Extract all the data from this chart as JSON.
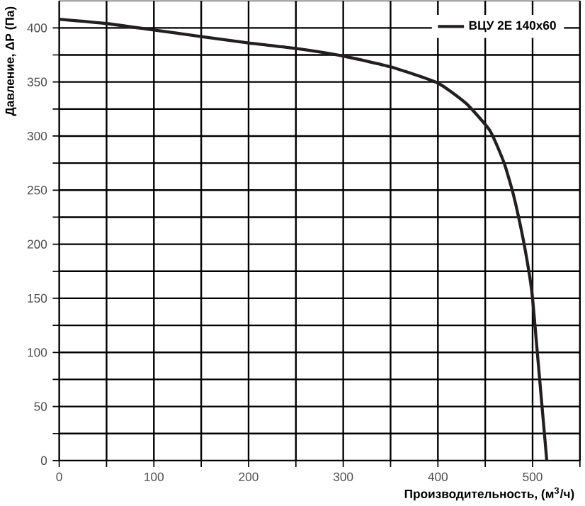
{
  "chart_data": {
    "type": "line",
    "xlabel": "Производительность, (м$^{3}$/ч)",
    "ylabel": "Давление, ΔP (Па)",
    "x": [
      0,
      50,
      100,
      150,
      200,
      250,
      300,
      350,
      400,
      430,
      455,
      470,
      480,
      490,
      497,
      500,
      505,
      510,
      515
    ],
    "series": [
      {
        "name": "ВЦУ 2Е 140x60",
        "color": "#231f20",
        "values": [
          408,
          404,
          398,
          392,
          386,
          381,
          374,
          364,
          349,
          330,
          305,
          275,
          245,
          205,
          170,
          150,
          100,
          50,
          0
        ]
      }
    ],
    "xlim": [
      0,
      550
    ],
    "ylim": [
      0,
      425
    ],
    "xticks": [
      0,
      {
        "value": 50,
        "label": null
      },
      100,
      {
        "value": 150,
        "label": null
      },
      200,
      {
        "value": 250,
        "label": null
      },
      300,
      {
        "value": 350,
        "label": null
      },
      400,
      {
        "value": 450,
        "label": null
      },
      500,
      {
        "value": 550,
        "label": null
      }
    ],
    "yticks": [
      0,
      {
        "value": 25,
        "label": null
      },
      50,
      {
        "value": 75,
        "label": null
      },
      100,
      {
        "value": 125,
        "label": null
      },
      150,
      {
        "value": 175,
        "label": null
      },
      200,
      {
        "value": 225,
        "label": null
      },
      250,
      {
        "value": 275,
        "label": null
      },
      300,
      {
        "value": 325,
        "label": null
      },
      350,
      {
        "value": 375,
        "label": null
      },
      400
    ],
    "grid": true,
    "legend": "top right",
    "marker": "none",
    "line_style": "solid"
  }
}
